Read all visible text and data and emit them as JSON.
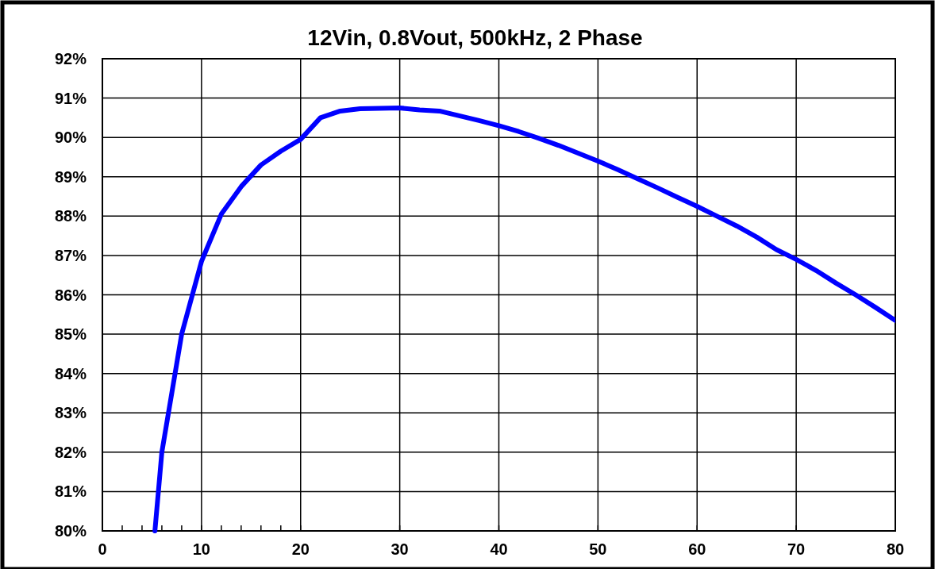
{
  "chart_data": {
    "type": "line",
    "title": "12Vin, 0.8Vout, 500kHz, 2 Phase",
    "x": [
      5.3,
      6,
      8,
      10,
      12,
      14,
      16,
      18,
      20,
      22,
      24,
      26,
      28,
      30,
      32,
      34,
      36,
      38,
      40,
      42,
      44,
      46,
      48,
      50,
      52,
      54,
      56,
      58,
      60,
      62,
      64,
      66,
      68,
      70,
      72,
      74,
      76,
      78,
      80
    ],
    "series": [
      {
        "color": "#0000ff",
        "values": [
          80.0,
          82.0,
          85.0,
          86.85,
          88.05,
          88.75,
          89.3,
          89.65,
          89.95,
          90.5,
          90.67,
          90.73,
          90.74,
          90.75,
          90.7,
          90.67,
          90.55,
          90.43,
          90.3,
          90.15,
          89.98,
          89.8,
          89.6,
          89.4,
          89.18,
          88.95,
          88.72,
          88.48,
          88.25,
          88.0,
          87.75,
          87.47,
          87.15,
          86.9,
          86.62,
          86.3,
          86.0,
          85.68,
          85.35
        ]
      }
    ],
    "xlim": [
      0,
      80
    ],
    "ylim": [
      80,
      92
    ],
    "xticks": [
      0,
      {
        "value": 2,
        "label": null
      },
      {
        "value": 4,
        "label": null
      },
      {
        "value": 6,
        "label": null
      },
      {
        "value": 8,
        "label": null
      },
      10,
      {
        "value": 12,
        "label": null
      },
      {
        "value": 14,
        "label": null
      },
      {
        "value": 16,
        "label": null
      },
      {
        "value": 18,
        "label": null
      },
      20,
      30,
      40,
      50,
      60,
      70,
      80
    ],
    "yticks": [
      {
        "value": 80,
        "label": "80%"
      },
      {
        "value": 81,
        "label": "81%"
      },
      {
        "value": 82,
        "label": "82%"
      },
      {
        "value": 83,
        "label": "83%"
      },
      {
        "value": 84,
        "label": "84%"
      },
      {
        "value": 85,
        "label": "85%"
      },
      {
        "value": 86,
        "label": "86%"
      },
      {
        "value": 87,
        "label": "87%"
      },
      {
        "value": 88,
        "label": "88%"
      },
      {
        "value": 89,
        "label": "89%"
      },
      {
        "value": 90,
        "label": "90%"
      },
      {
        "value": 91,
        "label": "91%"
      },
      {
        "value": 92,
        "label": "92%"
      }
    ],
    "grid": true,
    "marker": "none",
    "line_style": "solid"
  }
}
